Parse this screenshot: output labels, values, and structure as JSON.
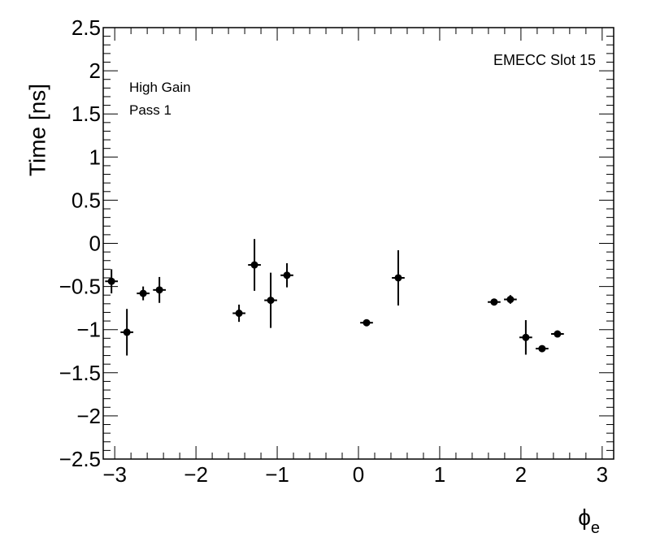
{
  "chart_data": {
    "type": "scatter",
    "title": "",
    "xlabel": "ϕ",
    "xlabel_subscript": "e",
    "ylabel": "Time [ns]",
    "xlim": [
      -3.14159,
      3.14159
    ],
    "ylim": [
      -2.5,
      2.5
    ],
    "x_ticks": [
      -3,
      -2,
      -1,
      0,
      1,
      2,
      3
    ],
    "x_tick_labels": [
      "−3",
      "−2",
      "−1",
      "0",
      "1",
      "2",
      "3"
    ],
    "y_ticks": [
      -2.5,
      -2,
      -1.5,
      -1,
      -0.5,
      0,
      0.5,
      1,
      1.5,
      2,
      2.5
    ],
    "y_tick_labels": [
      "−2.5",
      "−2",
      "−1.5",
      "−1",
      "−0.5",
      "0",
      "0.5",
      "1",
      "1.5",
      "2",
      "2.5"
    ],
    "grid": false,
    "x_half_width": 0.0785,
    "points": [
      {
        "x": -3.04,
        "y": -0.44,
        "err": 0.14
      },
      {
        "x": -2.85,
        "y": -1.03,
        "err": 0.27
      },
      {
        "x": -2.65,
        "y": -0.58,
        "err": 0.08
      },
      {
        "x": -2.45,
        "y": -0.54,
        "err": 0.15
      },
      {
        "x": -1.47,
        "y": -0.81,
        "err": 0.1
      },
      {
        "x": -1.28,
        "y": -0.25,
        "err": 0.3
      },
      {
        "x": -1.08,
        "y": -0.66,
        "err": 0.32
      },
      {
        "x": -0.88,
        "y": -0.37,
        "err": 0.14
      },
      {
        "x": 0.1,
        "y": -0.92,
        "err": 0.02
      },
      {
        "x": 0.49,
        "y": -0.4,
        "err": 0.32
      },
      {
        "x": 1.67,
        "y": -0.68,
        "err": 0.02
      },
      {
        "x": 1.87,
        "y": -0.65,
        "err": 0.05
      },
      {
        "x": 2.06,
        "y": -1.09,
        "err": 0.2
      },
      {
        "x": 2.26,
        "y": -1.22,
        "err": 0.02
      },
      {
        "x": 2.45,
        "y": -1.05,
        "err": 0.03
      }
    ],
    "annotations": {
      "gain": "High Gain",
      "pass": "Pass 1",
      "slot": "EMECC Slot 15"
    }
  }
}
